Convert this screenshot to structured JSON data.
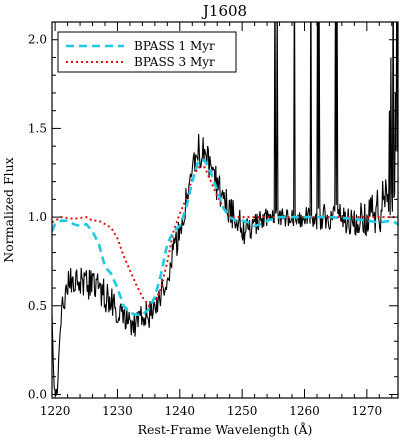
{
  "chart_data": {
    "type": "line",
    "title": "J1608",
    "xlabel": "Rest-Frame Wavelength (Å)",
    "ylabel": "Normalized Flux",
    "xlim": [
      1219.5,
      1275
    ],
    "ylim": [
      -0.02,
      2.1
    ],
    "x_ticks": [
      1220,
      1230,
      1240,
      1250,
      1260,
      1270
    ],
    "y_ticks": [
      0.0,
      0.5,
      1.0,
      1.5,
      2.0
    ],
    "x_tick_labels": [
      "1220",
      "1230",
      "1240",
      "1250",
      "1260",
      "1270"
    ],
    "y_tick_labels": [
      "0.0",
      "0.5",
      "1.0",
      "1.5",
      "2.0"
    ],
    "grid": false,
    "legend_position": "top-left",
    "series": [
      {
        "name": "",
        "color": "#000000",
        "style": "solid",
        "anchors": [
          [
            1219.5,
            0.45
          ],
          [
            1219.8,
            0.05
          ],
          [
            1220.3,
            0.0
          ],
          [
            1220.6,
            0.2
          ],
          [
            1221.0,
            0.48
          ],
          [
            1221.5,
            0.55
          ],
          [
            1222.0,
            0.62
          ],
          [
            1223.0,
            0.62
          ],
          [
            1224.0,
            0.65
          ],
          [
            1225.0,
            0.62
          ],
          [
            1226.0,
            0.62
          ],
          [
            1227.0,
            0.6
          ],
          [
            1228.0,
            0.55
          ],
          [
            1229.0,
            0.52
          ],
          [
            1230.0,
            0.48
          ],
          [
            1231.0,
            0.45
          ],
          [
            1232.0,
            0.42
          ],
          [
            1233.0,
            0.4
          ],
          [
            1234.0,
            0.42
          ],
          [
            1235.0,
            0.45
          ],
          [
            1236.0,
            0.5
          ],
          [
            1237.0,
            0.58
          ],
          [
            1238.0,
            0.68
          ],
          [
            1239.0,
            0.8
          ],
          [
            1240.0,
            0.92
          ],
          [
            1241.0,
            1.08
          ],
          [
            1242.0,
            1.25
          ],
          [
            1243.0,
            1.38
          ],
          [
            1244.0,
            1.35
          ],
          [
            1245.0,
            1.25
          ],
          [
            1246.0,
            1.18
          ],
          [
            1247.0,
            1.12
          ],
          [
            1248.0,
            1.05
          ],
          [
            1249.0,
            1.0
          ],
          [
            1250.0,
            0.95
          ],
          [
            1251.0,
            0.9
          ],
          [
            1252.0,
            0.95
          ],
          [
            1253.0,
            0.98
          ],
          [
            1254.0,
            1.0
          ],
          [
            1256.0,
            1.0
          ],
          [
            1258.0,
            1.0
          ],
          [
            1260.0,
            1.0
          ],
          [
            1262.0,
            1.0
          ],
          [
            1264.0,
            1.0
          ],
          [
            1266.0,
            1.0
          ],
          [
            1268.0,
            0.98
          ],
          [
            1270.0,
            1.0
          ],
          [
            1272.0,
            1.05
          ],
          [
            1273.0,
            1.1
          ],
          [
            1274.0,
            1.2
          ],
          [
            1275.0,
            1.3
          ]
        ],
        "noise": [
          [
            1219.5,
            0.0
          ],
          [
            1220.5,
            0.05
          ],
          [
            1222.0,
            0.1
          ],
          [
            1230.0,
            0.09
          ],
          [
            1238.0,
            0.08
          ],
          [
            1244.0,
            0.1
          ],
          [
            1250.0,
            0.09
          ],
          [
            1255.0,
            0.05
          ],
          [
            1262.0,
            0.07
          ],
          [
            1268.0,
            0.09
          ],
          [
            1271.0,
            0.12
          ],
          [
            1275.0,
            0.2
          ]
        ],
        "spikes": [
          [
            1255.2,
            2.5
          ],
          [
            1255.5,
            2.3
          ],
          [
            1258.3,
            2.6
          ],
          [
            1261.0,
            2.5
          ],
          [
            1262.0,
            2.6
          ],
          [
            1262.3,
            2.4
          ],
          [
            1264.9,
            2.5
          ],
          [
            1265.2,
            2.4
          ],
          [
            1273.5,
            1.6
          ],
          [
            1273.8,
            1.9
          ],
          [
            1274.1,
            2.5
          ],
          [
            1274.5,
            1.7
          ],
          [
            1274.8,
            2.6
          ]
        ]
      },
      {
        "name": "BPASS 1 Myr",
        "color": "#1ec8e6",
        "style": "dashed",
        "points": [
          [
            1219.5,
            0.92
          ],
          [
            1220.0,
            0.96
          ],
          [
            1221.0,
            0.98
          ],
          [
            1222.0,
            0.98
          ],
          [
            1223.0,
            0.96
          ],
          [
            1224.0,
            0.95
          ],
          [
            1225.0,
            0.96
          ],
          [
            1226.0,
            0.92
          ],
          [
            1227.0,
            0.85
          ],
          [
            1228.0,
            0.72
          ],
          [
            1229.0,
            0.68
          ],
          [
            1230.0,
            0.6
          ],
          [
            1231.0,
            0.5
          ],
          [
            1232.0,
            0.46
          ],
          [
            1233.0,
            0.45
          ],
          [
            1234.0,
            0.45
          ],
          [
            1235.0,
            0.48
          ],
          [
            1236.0,
            0.55
          ],
          [
            1237.0,
            0.68
          ],
          [
            1238.0,
            0.85
          ],
          [
            1239.0,
            0.92
          ],
          [
            1240.0,
            0.95
          ],
          [
            1241.0,
            1.05
          ],
          [
            1242.0,
            1.2
          ],
          [
            1243.0,
            1.32
          ],
          [
            1244.0,
            1.32
          ],
          [
            1245.0,
            1.25
          ],
          [
            1246.0,
            1.15
          ],
          [
            1247.0,
            1.05
          ],
          [
            1248.0,
            1.0
          ],
          [
            1249.0,
            0.98
          ],
          [
            1250.0,
            0.98
          ],
          [
            1251.0,
            0.97
          ],
          [
            1252.0,
            0.95
          ],
          [
            1253.0,
            0.96
          ],
          [
            1254.0,
            0.98
          ],
          [
            1256.0,
            1.0
          ],
          [
            1260.0,
            1.0
          ],
          [
            1264.0,
            1.0
          ],
          [
            1268.0,
            0.99
          ],
          [
            1270.0,
            0.98
          ],
          [
            1272.0,
            0.97
          ],
          [
            1274.0,
            0.98
          ],
          [
            1275.0,
            0.96
          ]
        ]
      },
      {
        "name": "BPASS 3 Myr",
        "color": "#dd1111",
        "style": "dotted",
        "points": [
          [
            1219.5,
            0.97
          ],
          [
            1221.0,
            1.0
          ],
          [
            1223.0,
            0.99
          ],
          [
            1225.0,
            1.0
          ],
          [
            1226.0,
            0.98
          ],
          [
            1227.0,
            0.98
          ],
          [
            1228.0,
            0.96
          ],
          [
            1229.0,
            0.94
          ],
          [
            1230.0,
            0.88
          ],
          [
            1231.0,
            0.78
          ],
          [
            1232.0,
            0.7
          ],
          [
            1233.0,
            0.62
          ],
          [
            1234.0,
            0.55
          ],
          [
            1235.0,
            0.5
          ],
          [
            1236.0,
            0.52
          ],
          [
            1237.0,
            0.6
          ],
          [
            1238.0,
            0.75
          ],
          [
            1239.0,
            0.92
          ],
          [
            1240.0,
            1.02
          ],
          [
            1241.0,
            1.1
          ],
          [
            1242.0,
            1.22
          ],
          [
            1243.0,
            1.28
          ],
          [
            1244.0,
            1.28
          ],
          [
            1245.0,
            1.2
          ],
          [
            1246.0,
            1.12
          ],
          [
            1247.0,
            1.05
          ],
          [
            1248.0,
            1.0
          ],
          [
            1250.0,
            1.0
          ],
          [
            1255.0,
            1.0
          ],
          [
            1260.0,
            1.0
          ],
          [
            1265.0,
            1.0
          ],
          [
            1270.0,
            1.0
          ],
          [
            1275.0,
            1.0
          ]
        ]
      }
    ]
  }
}
